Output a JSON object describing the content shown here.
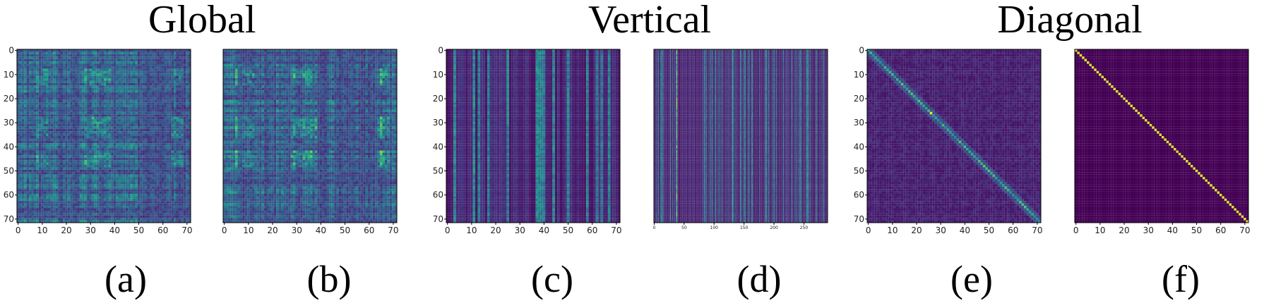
{
  "titles": {
    "global": "Global",
    "vertical": "Vertical",
    "diagonal": "Diagonal"
  },
  "chart_data": [
    {
      "type": "heatmap",
      "caption": "(a)",
      "group": "Global",
      "pattern": "global",
      "seed": 3,
      "rows": 72,
      "cols": 72,
      "xticks": [
        0,
        10,
        20,
        30,
        40,
        50,
        60,
        70
      ],
      "yticks": [
        0,
        10,
        20,
        30,
        40,
        50,
        60,
        70
      ],
      "xlim": [
        0,
        71
      ],
      "ylim": [
        0,
        71
      ],
      "colormap": "viridis",
      "grid": false
    },
    {
      "type": "heatmap",
      "caption": "(b)",
      "group": "Global",
      "pattern": "global2",
      "seed": 7,
      "rows": 72,
      "cols": 72,
      "xticks": [
        0,
        10,
        20,
        30,
        40,
        50,
        60,
        70
      ],
      "yticks": [],
      "xlim": [
        0,
        71
      ],
      "ylim": [
        0,
        71
      ],
      "colormap": "viridis",
      "grid": false
    },
    {
      "type": "heatmap",
      "caption": "(c)",
      "group": "Vertical",
      "pattern": "vertical",
      "seed": 11,
      "rows": 72,
      "cols": 72,
      "xticks": [
        0,
        10,
        20,
        30,
        40,
        50,
        60,
        70
      ],
      "yticks": [
        0,
        10,
        20,
        30,
        40,
        50,
        60,
        70
      ],
      "xlim": [
        0,
        71
      ],
      "ylim": [
        0,
        71
      ],
      "colormap": "viridis",
      "grid": false
    },
    {
      "type": "heatmap",
      "caption": "(d)",
      "group": "Vertical",
      "pattern": "vertical_long",
      "seed": 13,
      "rows": 72,
      "cols": 290,
      "xticks": [
        0,
        50,
        100,
        150,
        200,
        250
      ],
      "yticks": [],
      "xlim": [
        0,
        289
      ],
      "ylim": [
        0,
        71
      ],
      "colormap": "viridis",
      "grid": false
    },
    {
      "type": "heatmap",
      "caption": "(e)",
      "group": "Diagonal",
      "pattern": "diagonal",
      "seed": 17,
      "rows": 72,
      "cols": 72,
      "xticks": [
        0,
        10,
        20,
        30,
        40,
        50,
        60,
        70
      ],
      "yticks": [
        0,
        10,
        20,
        30,
        40,
        50,
        60,
        70
      ],
      "xlim": [
        0,
        71
      ],
      "ylim": [
        0,
        71
      ],
      "colormap": "viridis",
      "grid": false
    },
    {
      "type": "heatmap",
      "caption": "(f)",
      "group": "Diagonal",
      "pattern": "identity",
      "seed": 19,
      "rows": 72,
      "cols": 72,
      "xticks": [
        0,
        10,
        20,
        30,
        40,
        50,
        60,
        70
      ],
      "yticks": [],
      "xlim": [
        0,
        71
      ],
      "ylim": [
        0,
        71
      ],
      "colormap": "viridis",
      "grid": false
    }
  ]
}
